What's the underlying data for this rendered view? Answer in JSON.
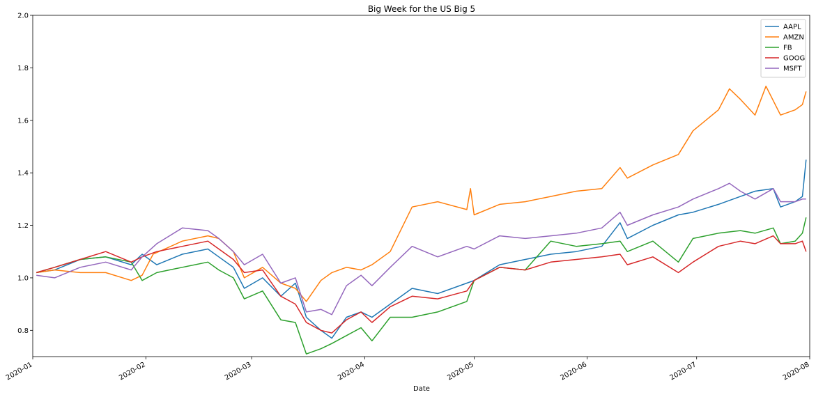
{
  "chart_data": {
    "type": "line",
    "title": "Big Week for the US Big 5",
    "xlabel": "Date",
    "ylabel": "",
    "xlim": [
      "2020-01-01",
      "2020-08-01"
    ],
    "ylim": [
      0.7,
      2.0
    ],
    "grid": false,
    "legend_position": "top-right",
    "x_ticks": [
      "2020-01",
      "2020-02",
      "2020-03",
      "2020-04",
      "2020-05",
      "2020-06",
      "2020-07",
      "2020-08"
    ],
    "y_ticks": [
      "0.8",
      "1.0",
      "1.2",
      "1.4",
      "1.6",
      "1.8",
      "2.0"
    ],
    "series": [
      {
        "name": "AAPL",
        "color": "#1f77b4",
        "points": [
          [
            "2020-01-02",
            1.02
          ],
          [
            "2020-01-07",
            1.03
          ],
          [
            "2020-01-14",
            1.07
          ],
          [
            "2020-01-21",
            1.08
          ],
          [
            "2020-01-28",
            1.05
          ],
          [
            "2020-01-31",
            1.09
          ],
          [
            "2020-02-04",
            1.05
          ],
          [
            "2020-02-11",
            1.09
          ],
          [
            "2020-02-18",
            1.11
          ],
          [
            "2020-02-21",
            1.08
          ],
          [
            "2020-02-25",
            1.04
          ],
          [
            "2020-02-28",
            0.96
          ],
          [
            "2020-03-04",
            1.0
          ],
          [
            "2020-03-09",
            0.93
          ],
          [
            "2020-03-13",
            0.98
          ],
          [
            "2020-03-16",
            0.85
          ],
          [
            "2020-03-20",
            0.8
          ],
          [
            "2020-03-23",
            0.77
          ],
          [
            "2020-03-27",
            0.85
          ],
          [
            "2020-03-31",
            0.87
          ],
          [
            "2020-04-03",
            0.85
          ],
          [
            "2020-04-08",
            0.9
          ],
          [
            "2020-04-14",
            0.96
          ],
          [
            "2020-04-21",
            0.94
          ],
          [
            "2020-04-29",
            0.98
          ],
          [
            "2020-05-01",
            0.99
          ],
          [
            "2020-05-08",
            1.05
          ],
          [
            "2020-05-15",
            1.07
          ],
          [
            "2020-05-22",
            1.09
          ],
          [
            "2020-05-29",
            1.1
          ],
          [
            "2020-06-05",
            1.12
          ],
          [
            "2020-06-10",
            1.21
          ],
          [
            "2020-06-12",
            1.15
          ],
          [
            "2020-06-19",
            1.2
          ],
          [
            "2020-06-26",
            1.24
          ],
          [
            "2020-06-30",
            1.25
          ],
          [
            "2020-07-07",
            1.28
          ],
          [
            "2020-07-13",
            1.31
          ],
          [
            "2020-07-17",
            1.33
          ],
          [
            "2020-07-22",
            1.34
          ],
          [
            "2020-07-24",
            1.27
          ],
          [
            "2020-07-28",
            1.29
          ],
          [
            "2020-07-30",
            1.31
          ],
          [
            "2020-07-31",
            1.45
          ]
        ]
      },
      {
        "name": "AMZN",
        "color": "#ff7f0e",
        "points": [
          [
            "2020-01-02",
            1.02
          ],
          [
            "2020-01-07",
            1.03
          ],
          [
            "2020-01-14",
            1.02
          ],
          [
            "2020-01-21",
            1.02
          ],
          [
            "2020-01-28",
            0.99
          ],
          [
            "2020-01-31",
            1.01
          ],
          [
            "2020-02-03",
            1.09
          ],
          [
            "2020-02-11",
            1.14
          ],
          [
            "2020-02-18",
            1.16
          ],
          [
            "2020-02-21",
            1.15
          ],
          [
            "2020-02-25",
            1.1
          ],
          [
            "2020-02-28",
            1.0
          ],
          [
            "2020-03-04",
            1.04
          ],
          [
            "2020-03-09",
            0.98
          ],
          [
            "2020-03-13",
            0.96
          ],
          [
            "2020-03-16",
            0.91
          ],
          [
            "2020-03-20",
            0.99
          ],
          [
            "2020-03-23",
            1.02
          ],
          [
            "2020-03-27",
            1.04
          ],
          [
            "2020-03-31",
            1.03
          ],
          [
            "2020-04-03",
            1.05
          ],
          [
            "2020-04-08",
            1.1
          ],
          [
            "2020-04-14",
            1.27
          ],
          [
            "2020-04-21",
            1.29
          ],
          [
            "2020-04-29",
            1.26
          ],
          [
            "2020-04-30",
            1.34
          ],
          [
            "2020-05-01",
            1.24
          ],
          [
            "2020-05-08",
            1.28
          ],
          [
            "2020-05-15",
            1.29
          ],
          [
            "2020-05-22",
            1.31
          ],
          [
            "2020-05-29",
            1.33
          ],
          [
            "2020-06-05",
            1.34
          ],
          [
            "2020-06-10",
            1.42
          ],
          [
            "2020-06-12",
            1.38
          ],
          [
            "2020-06-19",
            1.43
          ],
          [
            "2020-06-26",
            1.47
          ],
          [
            "2020-06-30",
            1.56
          ],
          [
            "2020-07-07",
            1.64
          ],
          [
            "2020-07-10",
            1.72
          ],
          [
            "2020-07-13",
            1.68
          ],
          [
            "2020-07-17",
            1.62
          ],
          [
            "2020-07-20",
            1.73
          ],
          [
            "2020-07-24",
            1.62
          ],
          [
            "2020-07-28",
            1.64
          ],
          [
            "2020-07-30",
            1.66
          ],
          [
            "2020-07-31",
            1.71
          ]
        ]
      },
      {
        "name": "FB",
        "color": "#2ca02c",
        "points": [
          [
            "2020-01-02",
            1.02
          ],
          [
            "2020-01-07",
            1.04
          ],
          [
            "2020-01-14",
            1.07
          ],
          [
            "2020-01-21",
            1.08
          ],
          [
            "2020-01-28",
            1.06
          ],
          [
            "2020-01-31",
            0.99
          ],
          [
            "2020-02-04",
            1.02
          ],
          [
            "2020-02-11",
            1.04
          ],
          [
            "2020-02-18",
            1.06
          ],
          [
            "2020-02-21",
            1.03
          ],
          [
            "2020-02-25",
            1.0
          ],
          [
            "2020-02-28",
            0.92
          ],
          [
            "2020-03-04",
            0.95
          ],
          [
            "2020-03-09",
            0.84
          ],
          [
            "2020-03-13",
            0.83
          ],
          [
            "2020-03-16",
            0.71
          ],
          [
            "2020-03-20",
            0.73
          ],
          [
            "2020-03-23",
            0.75
          ],
          [
            "2020-03-27",
            0.78
          ],
          [
            "2020-03-31",
            0.81
          ],
          [
            "2020-04-03",
            0.76
          ],
          [
            "2020-04-08",
            0.85
          ],
          [
            "2020-04-14",
            0.85
          ],
          [
            "2020-04-21",
            0.87
          ],
          [
            "2020-04-29",
            0.91
          ],
          [
            "2020-05-01",
            0.99
          ],
          [
            "2020-05-08",
            1.04
          ],
          [
            "2020-05-15",
            1.03
          ],
          [
            "2020-05-22",
            1.14
          ],
          [
            "2020-05-29",
            1.12
          ],
          [
            "2020-06-05",
            1.13
          ],
          [
            "2020-06-10",
            1.14
          ],
          [
            "2020-06-12",
            1.1
          ],
          [
            "2020-06-19",
            1.14
          ],
          [
            "2020-06-26",
            1.06
          ],
          [
            "2020-06-30",
            1.15
          ],
          [
            "2020-07-07",
            1.17
          ],
          [
            "2020-07-13",
            1.18
          ],
          [
            "2020-07-17",
            1.17
          ],
          [
            "2020-07-22",
            1.19
          ],
          [
            "2020-07-24",
            1.13
          ],
          [
            "2020-07-28",
            1.14
          ],
          [
            "2020-07-30",
            1.17
          ],
          [
            "2020-07-31",
            1.23
          ]
        ]
      },
      {
        "name": "GOOG",
        "color": "#d62728",
        "points": [
          [
            "2020-01-02",
            1.02
          ],
          [
            "2020-01-07",
            1.04
          ],
          [
            "2020-01-14",
            1.07
          ],
          [
            "2020-01-21",
            1.1
          ],
          [
            "2020-01-28",
            1.06
          ],
          [
            "2020-01-31",
            1.08
          ],
          [
            "2020-02-04",
            1.1
          ],
          [
            "2020-02-11",
            1.12
          ],
          [
            "2020-02-18",
            1.14
          ],
          [
            "2020-02-21",
            1.11
          ],
          [
            "2020-02-25",
            1.07
          ],
          [
            "2020-02-28",
            1.02
          ],
          [
            "2020-03-04",
            1.03
          ],
          [
            "2020-03-09",
            0.93
          ],
          [
            "2020-03-13",
            0.9
          ],
          [
            "2020-03-16",
            0.83
          ],
          [
            "2020-03-20",
            0.8
          ],
          [
            "2020-03-23",
            0.79
          ],
          [
            "2020-03-27",
            0.84
          ],
          [
            "2020-03-31",
            0.87
          ],
          [
            "2020-04-03",
            0.83
          ],
          [
            "2020-04-08",
            0.89
          ],
          [
            "2020-04-14",
            0.93
          ],
          [
            "2020-04-21",
            0.92
          ],
          [
            "2020-04-29",
            0.95
          ],
          [
            "2020-05-01",
            0.99
          ],
          [
            "2020-05-08",
            1.04
          ],
          [
            "2020-05-15",
            1.03
          ],
          [
            "2020-05-22",
            1.06
          ],
          [
            "2020-05-29",
            1.07
          ],
          [
            "2020-06-05",
            1.08
          ],
          [
            "2020-06-10",
            1.09
          ],
          [
            "2020-06-12",
            1.05
          ],
          [
            "2020-06-19",
            1.08
          ],
          [
            "2020-06-26",
            1.02
          ],
          [
            "2020-06-30",
            1.06
          ],
          [
            "2020-07-07",
            1.12
          ],
          [
            "2020-07-13",
            1.14
          ],
          [
            "2020-07-17",
            1.13
          ],
          [
            "2020-07-22",
            1.16
          ],
          [
            "2020-07-24",
            1.13
          ],
          [
            "2020-07-28",
            1.13
          ],
          [
            "2020-07-30",
            1.14
          ],
          [
            "2020-07-31",
            1.1
          ]
        ]
      },
      {
        "name": "MSFT",
        "color": "#9467bd",
        "points": [
          [
            "2020-01-02",
            1.01
          ],
          [
            "2020-01-07",
            1.0
          ],
          [
            "2020-01-14",
            1.04
          ],
          [
            "2020-01-21",
            1.06
          ],
          [
            "2020-01-28",
            1.03
          ],
          [
            "2020-01-31",
            1.08
          ],
          [
            "2020-02-04",
            1.13
          ],
          [
            "2020-02-11",
            1.19
          ],
          [
            "2020-02-18",
            1.18
          ],
          [
            "2020-02-21",
            1.15
          ],
          [
            "2020-02-25",
            1.1
          ],
          [
            "2020-02-28",
            1.05
          ],
          [
            "2020-03-04",
            1.09
          ],
          [
            "2020-03-09",
            0.98
          ],
          [
            "2020-03-13",
            1.0
          ],
          [
            "2020-03-16",
            0.87
          ],
          [
            "2020-03-20",
            0.88
          ],
          [
            "2020-03-23",
            0.86
          ],
          [
            "2020-03-27",
            0.97
          ],
          [
            "2020-03-31",
            1.01
          ],
          [
            "2020-04-03",
            0.97
          ],
          [
            "2020-04-08",
            1.04
          ],
          [
            "2020-04-14",
            1.12
          ],
          [
            "2020-04-21",
            1.08
          ],
          [
            "2020-04-29",
            1.12
          ],
          [
            "2020-05-01",
            1.11
          ],
          [
            "2020-05-08",
            1.16
          ],
          [
            "2020-05-15",
            1.15
          ],
          [
            "2020-05-22",
            1.16
          ],
          [
            "2020-05-29",
            1.17
          ],
          [
            "2020-06-05",
            1.19
          ],
          [
            "2020-06-10",
            1.25
          ],
          [
            "2020-06-12",
            1.2
          ],
          [
            "2020-06-19",
            1.24
          ],
          [
            "2020-06-26",
            1.27
          ],
          [
            "2020-06-30",
            1.3
          ],
          [
            "2020-07-07",
            1.34
          ],
          [
            "2020-07-10",
            1.36
          ],
          [
            "2020-07-13",
            1.33
          ],
          [
            "2020-07-17",
            1.3
          ],
          [
            "2020-07-22",
            1.34
          ],
          [
            "2020-07-24",
            1.29
          ],
          [
            "2020-07-28",
            1.29
          ],
          [
            "2020-07-30",
            1.3
          ],
          [
            "2020-07-31",
            1.3
          ]
        ]
      }
    ]
  }
}
